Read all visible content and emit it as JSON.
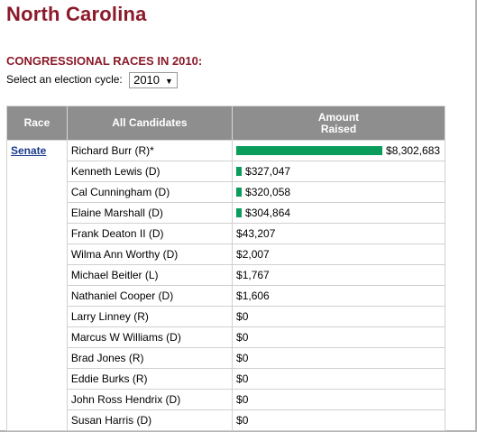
{
  "header": {
    "state_title": "North Carolina"
  },
  "section": {
    "heading": "CONGRESSIONAL RACES IN 2010:",
    "cycle_label": "Select an election cycle:",
    "cycle_value": "2010"
  },
  "table": {
    "columns": [
      "Race",
      "All Candidates",
      "Amount Raised"
    ],
    "race_link": "Senate",
    "rows": [
      {
        "name": "Richard Burr (R)*",
        "amount": "$8,302,683",
        "raised": 8302683
      },
      {
        "name": "Kenneth Lewis (D)",
        "amount": "$327,047",
        "raised": 327047
      },
      {
        "name": "Cal Cunningham (D)",
        "amount": "$320,058",
        "raised": 320058
      },
      {
        "name": "Elaine Marshall (D)",
        "amount": "$304,864",
        "raised": 304864
      },
      {
        "name": "Frank Deaton II (D)",
        "amount": "$43,207",
        "raised": 43207
      },
      {
        "name": "Wilma Ann Worthy (D)",
        "amount": "$2,007",
        "raised": 2007
      },
      {
        "name": "Michael Beitler (L)",
        "amount": "$1,767",
        "raised": 1767
      },
      {
        "name": "Nathaniel Cooper (D)",
        "amount": "$1,606",
        "raised": 1606
      },
      {
        "name": "Larry Linney (R)",
        "amount": "$0",
        "raised": 0
      },
      {
        "name": "Marcus W Williams (D)",
        "amount": "$0",
        "raised": 0
      },
      {
        "name": "Brad Jones (R)",
        "amount": "$0",
        "raised": 0
      },
      {
        "name": "Eddie Burks (R)",
        "amount": "$0",
        "raised": 0
      },
      {
        "name": "John Ross Hendrix (D)",
        "amount": "$0",
        "raised": 0
      },
      {
        "name": "Susan Harris (D)",
        "amount": "$0",
        "raised": 0
      }
    ]
  },
  "colors": {
    "title": "#8b1a2a",
    "bar": "#0a9c5a",
    "header_bg": "#8e8e8e",
    "link": "#1a3a8a"
  }
}
